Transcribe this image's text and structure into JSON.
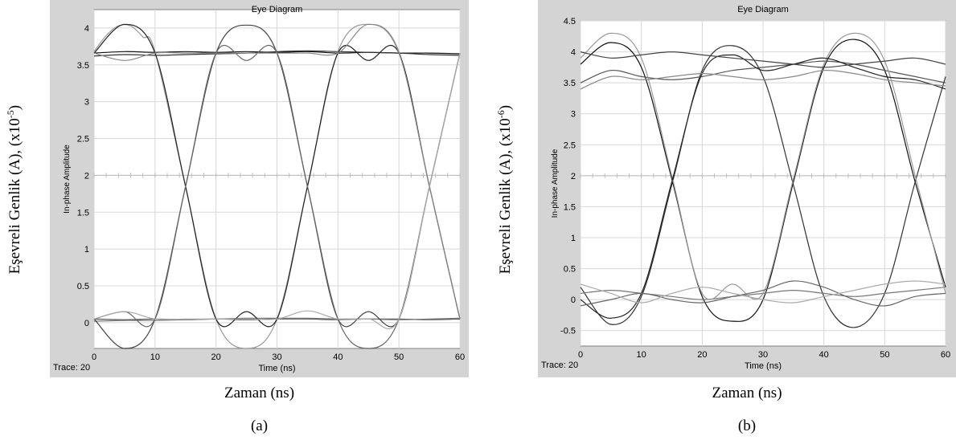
{
  "chart_data": [
    {
      "type": "line",
      "title": "Eye Diagram",
      "xlabel": "Time (ns)",
      "ylabel": "In-phase Amplitude",
      "outer_xlabel": "Zaman (ns)",
      "outer_ylabel": "Eşevreli Genlik (A), (x10",
      "outer_ylabel_exp": "-5",
      "outer_ylabel_close": ")",
      "panel_label": "(a)",
      "trace_label": "Trace: 20",
      "xlim": [
        0,
        60
      ],
      "ylim": [
        -0.35,
        4.25
      ],
      "xticks": [
        0,
        10,
        20,
        30,
        40,
        50,
        60
      ],
      "yticks": [
        0,
        0.5,
        1,
        1.5,
        2,
        2.5,
        3,
        3.5,
        4
      ],
      "grid": true,
      "series": [
        {
          "x": [
            0,
            5,
            10,
            15,
            20,
            25,
            30,
            35,
            40,
            45,
            50,
            55,
            60
          ],
          "y": [
            3.66,
            3.68,
            3.67,
            3.68,
            3.67,
            3.68,
            3.67,
            3.68,
            3.66,
            3.67,
            3.66,
            3.66,
            3.65
          ]
        },
        {
          "x": [
            0,
            5,
            10,
            15,
            20,
            25,
            30,
            35,
            40,
            45,
            50,
            55,
            60
          ],
          "y": [
            3.62,
            3.64,
            3.63,
            3.64,
            3.65,
            3.66,
            3.68,
            3.69,
            3.68,
            3.67,
            3.66,
            3.64,
            3.63
          ]
        },
        {
          "x": [
            0,
            5,
            10,
            15,
            20,
            25,
            30,
            35,
            40,
            45,
            50,
            55,
            60
          ],
          "y": [
            0.05,
            0.04,
            0.05,
            0.04,
            0.05,
            0.04,
            0.05,
            0.05,
            0.04,
            0.05,
            0.05,
            0.04,
            0.05
          ]
        },
        {
          "x": [
            0,
            5,
            10,
            15,
            20,
            25,
            30,
            35,
            40,
            45,
            50,
            55,
            60
          ],
          "y": [
            0.02,
            0.03,
            0.03,
            0.04,
            0.05,
            0.06,
            0.06,
            0.06,
            0.05,
            0.05,
            0.04,
            0.05,
            0.06
          ]
        },
        {
          "x": [
            0,
            2,
            4,
            6,
            8,
            10,
            15,
            20,
            25,
            30,
            35,
            40,
            45,
            50,
            55,
            60
          ],
          "y": [
            3.68,
            3.9,
            4.03,
            4.03,
            3.88,
            3.68,
            1.85,
            0.05,
            -0.35,
            0.05,
            1.85,
            3.68,
            4.05,
            3.68,
            1.85,
            0.05
          ]
        },
        {
          "x": [
            0,
            5,
            10,
            15,
            20,
            25,
            30,
            35,
            40,
            45,
            50,
            55,
            60
          ],
          "y": [
            3.66,
            4.05,
            3.66,
            1.85,
            0.05,
            0.15,
            0.05,
            1.85,
            3.66,
            3.56,
            3.66,
            1.85,
            0.05
          ]
        },
        {
          "x": [
            0,
            5,
            10,
            15,
            20,
            25,
            30,
            35,
            40,
            45,
            50,
            55,
            60
          ],
          "y": [
            0.05,
            -0.35,
            0.05,
            1.85,
            3.66,
            4.04,
            3.66,
            1.85,
            0.05,
            0.15,
            0.05,
            1.85,
            3.66
          ]
        },
        {
          "x": [
            0,
            5,
            10,
            15,
            20,
            25,
            30,
            35,
            40,
            45,
            50,
            55,
            60
          ],
          "y": [
            0.05,
            0.15,
            0.05,
            1.85,
            3.66,
            3.56,
            3.66,
            1.85,
            0.05,
            -0.35,
            0.05,
            1.85,
            3.66
          ]
        },
        {
          "x": [
            0,
            5,
            10,
            15,
            20,
            25,
            30,
            35,
            40,
            45,
            50,
            55,
            60
          ],
          "y": [
            3.66,
            3.56,
            3.66,
            3.66,
            3.66,
            3.66,
            3.66,
            3.66,
            3.66,
            4.05,
            3.66,
            1.85,
            0.05
          ]
        },
        {
          "x": [
            0,
            5,
            10,
            15,
            20,
            25,
            30,
            35,
            40,
            45,
            50,
            55,
            60
          ],
          "y": [
            0.05,
            0.15,
            0.05,
            0.05,
            0.05,
            0.05,
            0.05,
            0.16,
            0.05,
            0.05,
            0.05,
            1.85,
            3.66
          ]
        }
      ]
    },
    {
      "type": "line",
      "title": "Eye Diagram",
      "xlabel": "Time (ns)",
      "ylabel": "In-phase Amplitude",
      "outer_xlabel": "Zaman (ns)",
      "outer_ylabel": "Eşevreli Genlik (A), (x10",
      "outer_ylabel_exp": "-6",
      "outer_ylabel_close": ")",
      "panel_label": "(b)",
      "trace_label": "Trace: 20",
      "xlim": [
        0,
        60
      ],
      "ylim": [
        -0.75,
        4.5
      ],
      "xticks": [
        0,
        10,
        20,
        30,
        40,
        50,
        60
      ],
      "yticks": [
        -0.5,
        0,
        0.5,
        1,
        1.5,
        2,
        2.5,
        3,
        3.5,
        4,
        4.5
      ],
      "grid": true,
      "series": [
        {
          "x": [
            0,
            5,
            10,
            15,
            20,
            25,
            30,
            35,
            40,
            45,
            50,
            55,
            60
          ],
          "y": [
            3.8,
            4.15,
            3.75,
            1.95,
            0.05,
            -0.35,
            0.0,
            1.9,
            3.75,
            4.2,
            3.7,
            1.9,
            0.2
          ]
        },
        {
          "x": [
            0,
            5,
            10,
            15,
            20,
            25,
            30,
            35,
            40,
            45,
            50,
            55,
            60
          ],
          "y": [
            0.2,
            -0.4,
            0.05,
            1.85,
            3.7,
            4.1,
            3.6,
            1.85,
            0.05,
            -0.45,
            0.1,
            1.9,
            3.6
          ]
        },
        {
          "x": [
            0,
            5,
            10,
            15,
            20,
            25,
            30,
            35,
            40,
            45,
            50,
            55,
            60
          ],
          "y": [
            3.5,
            3.7,
            3.6,
            3.55,
            3.6,
            3.7,
            3.75,
            3.8,
            3.85,
            3.8,
            3.7,
            3.6,
            3.5
          ]
        },
        {
          "x": [
            0,
            5,
            10,
            15,
            20,
            25,
            30,
            35,
            40,
            45,
            50,
            55,
            60
          ],
          "y": [
            0.1,
            0.15,
            0.1,
            0.05,
            0.0,
            0.05,
            0.1,
            0.15,
            0.1,
            0.05,
            0.1,
            0.15,
            0.2
          ]
        },
        {
          "x": [
            0,
            5,
            10,
            15,
            20,
            25,
            30,
            35,
            40,
            45,
            50,
            55,
            60
          ],
          "y": [
            3.9,
            4.3,
            3.9,
            2.0,
            0.1,
            0.25,
            0.1,
            1.95,
            3.8,
            4.3,
            3.85,
            2.0,
            0.1
          ]
        },
        {
          "x": [
            0,
            5,
            10,
            15,
            20,
            25,
            30,
            35,
            40,
            45,
            50,
            55,
            60
          ],
          "y": [
            0.0,
            -0.3,
            0.1,
            1.9,
            3.65,
            3.95,
            3.7,
            3.8,
            3.9,
            3.75,
            3.6,
            3.55,
            3.4
          ]
        },
        {
          "x": [
            0,
            5,
            10,
            15,
            20,
            25,
            30,
            35,
            40,
            45,
            50,
            55,
            60
          ],
          "y": [
            4.0,
            3.9,
            3.95,
            4.0,
            3.95,
            3.9,
            3.85,
            3.8,
            3.75,
            3.8,
            3.85,
            3.9,
            3.8
          ]
        },
        {
          "x": [
            0,
            5,
            10,
            15,
            20,
            25,
            30,
            35,
            40,
            45,
            50,
            55,
            60
          ],
          "y": [
            -0.1,
            0.0,
            0.1,
            0.0,
            -0.05,
            0.05,
            0.15,
            0.3,
            0.2,
            0.0,
            -0.1,
            0.05,
            0.1
          ]
        },
        {
          "x": [
            0,
            5,
            10,
            15,
            20,
            25,
            30,
            35,
            40,
            45,
            50,
            55,
            60
          ],
          "y": [
            3.4,
            3.6,
            3.55,
            3.6,
            3.65,
            3.6,
            3.55,
            3.6,
            3.7,
            3.65,
            3.55,
            3.5,
            3.45
          ]
        },
        {
          "x": [
            0,
            5,
            10,
            15,
            20,
            25,
            30,
            35,
            40,
            45,
            50,
            55,
            60
          ],
          "y": [
            0.25,
            0.1,
            -0.05,
            0.1,
            0.2,
            0.1,
            0.0,
            -0.05,
            0.05,
            0.15,
            0.25,
            0.3,
            0.25
          ]
        }
      ]
    }
  ]
}
